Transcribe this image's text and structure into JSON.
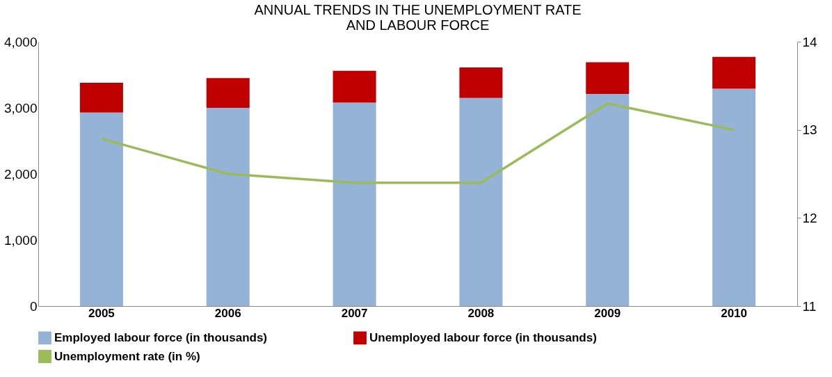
{
  "chart_data": {
    "type": "bar",
    "title": "ANNUAL TRENDS IN THE UNEMPLOYMENT RATE\nAND LABOUR FORCE",
    "categories": [
      "2005",
      "2006",
      "2007",
      "2008",
      "2009",
      "2010"
    ],
    "stacked": true,
    "series": [
      {
        "name": "Employed labour force (in thousands)",
        "color": "#95b3d7",
        "values": [
          2930,
          3000,
          3080,
          3150,
          3210,
          3290
        ]
      },
      {
        "name": "Unemployed labour force (in thousands)",
        "color": "#c00000",
        "values": [
          450,
          450,
          480,
          460,
          480,
          480
        ]
      },
      {
        "name": "Unemployment rate (in %)",
        "color": "#9bbb59",
        "type": "line",
        "axis": "y2",
        "values": [
          12.9,
          12.5,
          12.4,
          12.4,
          13.3,
          13.0
        ]
      }
    ],
    "ylim": [
      0,
      4000
    ],
    "yticks": [
      0,
      {
        "value": 1000,
        "label": "1,000"
      },
      {
        "value": 2000,
        "label": "2,000"
      },
      {
        "value": 3000,
        "label": "3,000"
      },
      {
        "value": 4000,
        "label": "4,000"
      }
    ],
    "y2lim": [
      11,
      14
    ],
    "y2ticks": [
      11,
      12,
      13,
      14
    ],
    "grid": false,
    "legend": "bottom",
    "marker": "none"
  }
}
